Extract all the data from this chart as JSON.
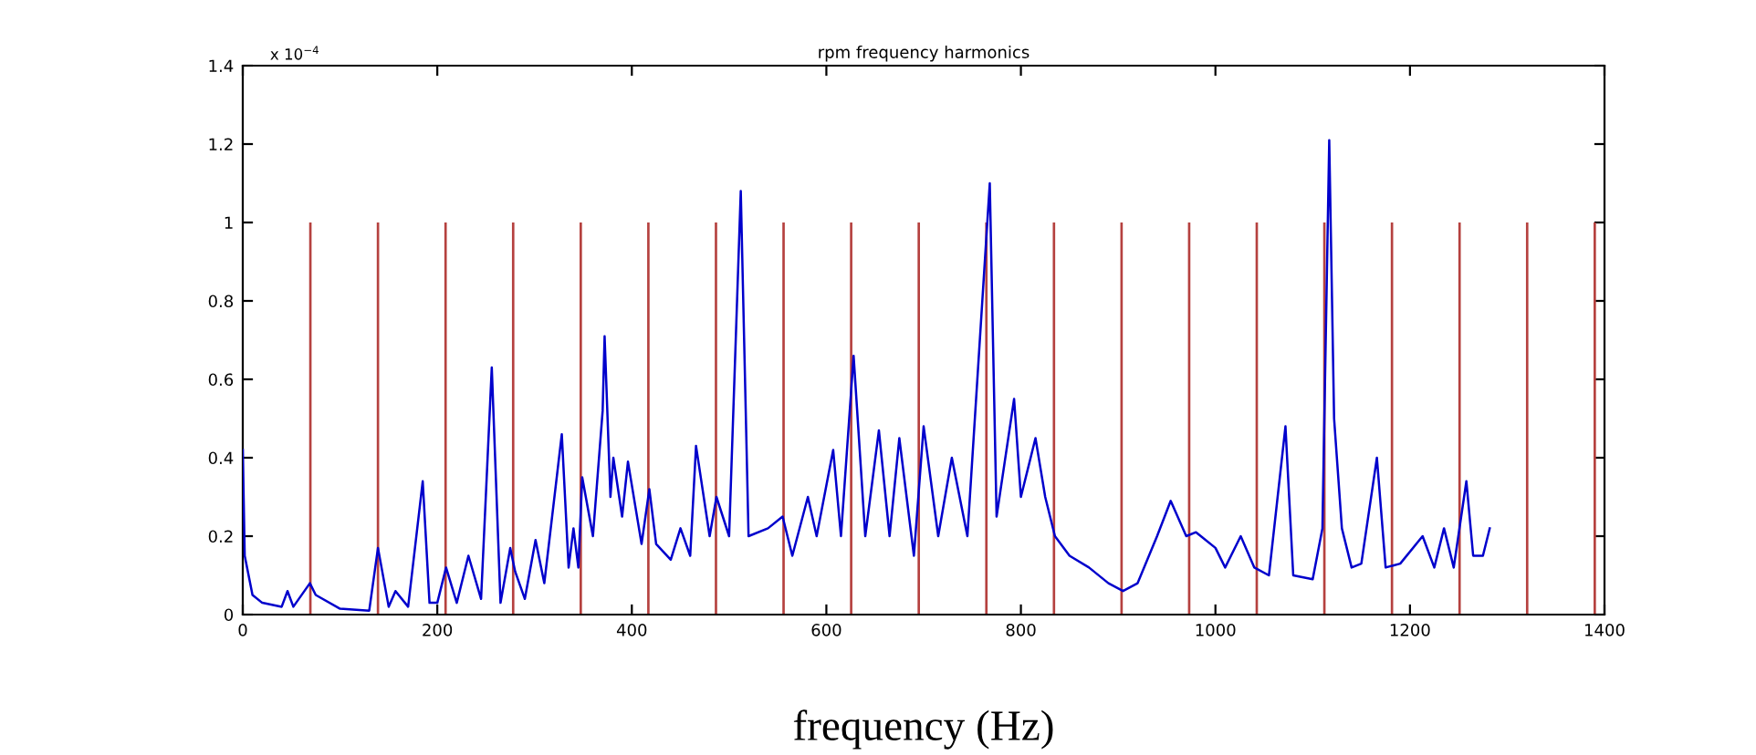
{
  "chart_data": {
    "type": "line",
    "title": "rpm frequency harmonics",
    "xlabel": "frequency (Hz)",
    "xlim": [
      0,
      1400
    ],
    "xticks": [
      0,
      200,
      400,
      600,
      800,
      1000,
      1200,
      1400
    ],
    "ylim": [
      0,
      1.4
    ],
    "yticks": [
      0,
      0.2,
      0.4,
      0.6,
      0.8,
      1,
      1.2,
      1.4
    ],
    "annotations": [
      "x 10$^{−4}$"
    ],
    "grid": false,
    "legend": false,
    "series": [
      {
        "type": "bar",
        "color": "#b5413f",
        "x": [
          69.5,
          139,
          208.5,
          278,
          347.5,
          417,
          486.5,
          556,
          625.5,
          695,
          764.5,
          834,
          903.5,
          973,
          1042.5,
          1112,
          1181.5,
          1251,
          1320.5,
          1390
        ],
        "values": [
          1,
          1,
          1,
          1,
          1,
          1,
          1,
          1,
          1,
          1,
          1,
          1,
          1,
          1,
          1,
          1,
          1,
          1,
          1,
          1
        ]
      },
      {
        "color": "#0000cc",
        "x": [
          0,
          2,
          10,
          20,
          40,
          46,
          52,
          69,
          75,
          100,
          130,
          139,
          150,
          157,
          170,
          185,
          192,
          200,
          209,
          220,
          232,
          245,
          256,
          265,
          275,
          280,
          290,
          301,
          310,
          328,
          335,
          340,
          345,
          349,
          360,
          370,
          372,
          378,
          381,
          390,
          396,
          410,
          418,
          425,
          440,
          450,
          460,
          466,
          480,
          487,
          500,
          512,
          520,
          540,
          555,
          565,
          581,
          590,
          607,
          615,
          628,
          640,
          654,
          665,
          675,
          690,
          700,
          715,
          729,
          745,
          768,
          775,
          793,
          800,
          815,
          825,
          835,
          850,
          870,
          890,
          905,
          920,
          940,
          954,
          970,
          980,
          985,
          1000,
          1010,
          1026,
          1040,
          1055,
          1072,
          1080,
          1100,
          1110,
          1117,
          1122,
          1130,
          1140,
          1150,
          1166,
          1175,
          1190,
          1213,
          1225,
          1235,
          1245,
          1258,
          1265,
          1275,
          1282
        ],
        "values": [
          0.42,
          0.15,
          0.05,
          0.03,
          0.02,
          0.06,
          0.02,
          0.08,
          0.05,
          0.015,
          0.01,
          0.17,
          0.02,
          0.06,
          0.02,
          0.34,
          0.03,
          0.03,
          0.12,
          0.03,
          0.15,
          0.04,
          0.63,
          0.03,
          0.17,
          0.11,
          0.04,
          0.19,
          0.08,
          0.46,
          0.12,
          0.22,
          0.12,
          0.35,
          0.2,
          0.52,
          0.71,
          0.3,
          0.4,
          0.25,
          0.39,
          0.18,
          0.32,
          0.18,
          0.14,
          0.22,
          0.15,
          0.43,
          0.2,
          0.3,
          0.2,
          1.08,
          0.2,
          0.22,
          0.25,
          0.15,
          0.3,
          0.2,
          0.42,
          0.2,
          0.66,
          0.2,
          0.47,
          0.2,
          0.45,
          0.15,
          0.48,
          0.2,
          0.4,
          0.2,
          1.1,
          0.25,
          0.55,
          0.3,
          0.45,
          0.3,
          0.2,
          0.15,
          0.12,
          0.08,
          0.06,
          0.08,
          0.2,
          0.29,
          0.2,
          0.21,
          0.2,
          0.17,
          0.12,
          0.2,
          0.12,
          0.1,
          0.48,
          0.1,
          0.09,
          0.22,
          1.21,
          0.5,
          0.22,
          0.12,
          0.13,
          0.4,
          0.12,
          0.13,
          0.2,
          0.12,
          0.22,
          0.12,
          0.34,
          0.15,
          0.15,
          0.22
        ]
      }
    ]
  }
}
